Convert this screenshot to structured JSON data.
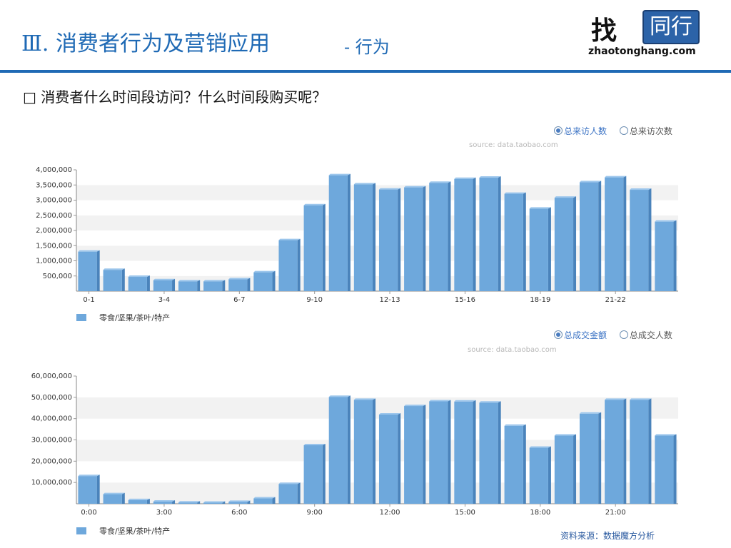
{
  "header": {
    "title": "Ⅲ. 消费者行为及营销应用",
    "subtitle": "- 行为",
    "logo_zh": "找",
    "logo_box": "同行",
    "logo_en": "zhaotonghang.com"
  },
  "question": "□  消费者什么时间段访问？什么时间段购买呢？",
  "footer": "资料来源：数据魔方分析",
  "colors": {
    "bar": "#6ea8dc",
    "bar_side": "#4a83bb",
    "bar_top": "#9cc6ec",
    "accent": "#1f6ab5"
  },
  "chart_data": [
    {
      "type": "bar",
      "source": "source: data.taobao.com",
      "options": [
        {
          "label": "总来访人数",
          "selected": true
        },
        {
          "label": "总来访次数",
          "selected": false
        }
      ],
      "legend": [
        "零食/坚果/茶叶/特产"
      ],
      "ylim": [
        0,
        4000000
      ],
      "yticks": [
        500000,
        1000000,
        1500000,
        2000000,
        2500000,
        3000000,
        3500000,
        4000000
      ],
      "ytick_labels": [
        "500,000",
        "1,000,000",
        "1,500,000",
        "2,000,000",
        "2,500,000",
        "3,000,000",
        "3,500,000",
        "4,000,000"
      ],
      "xtick_labels": [
        {
          "index": 0,
          "label": "0-1"
        },
        {
          "index": 3,
          "label": "3-4"
        },
        {
          "index": 6,
          "label": "6-7"
        },
        {
          "index": 9,
          "label": "9-10"
        },
        {
          "index": 12,
          "label": "12-13"
        },
        {
          "index": 15,
          "label": "15-16"
        },
        {
          "index": 18,
          "label": "18-19"
        },
        {
          "index": 21,
          "label": "21-22"
        }
      ],
      "values": [
        1300000,
        700000,
        470000,
        360000,
        320000,
        320000,
        390000,
        620000,
        1680000,
        2830000,
        3820000,
        3520000,
        3350000,
        3420000,
        3570000,
        3700000,
        3740000,
        3210000,
        2720000,
        3080000,
        3590000,
        3750000,
        3340000,
        2290000
      ]
    },
    {
      "type": "bar",
      "source": "source: data.taobao.com",
      "options": [
        {
          "label": "总成交金额",
          "selected": true
        },
        {
          "label": "总成交人数",
          "selected": false
        }
      ],
      "legend": [
        "零食/坚果/茶叶/特产"
      ],
      "ylim": [
        0,
        60000000
      ],
      "yticks": [
        10000000,
        20000000,
        30000000,
        40000000,
        50000000,
        60000000
      ],
      "ytick_labels": [
        "10,000,000",
        "20,000,000",
        "30,000,000",
        "40,000,000",
        "50,000,000",
        "60,000,000"
      ],
      "xtick_labels": [
        {
          "index": 0,
          "label": "0:00"
        },
        {
          "index": 3,
          "label": "3:00"
        },
        {
          "index": 6,
          "label": "6:00"
        },
        {
          "index": 9,
          "label": "9:00"
        },
        {
          "index": 12,
          "label": "12:00"
        },
        {
          "index": 15,
          "label": "15:00"
        },
        {
          "index": 18,
          "label": "18:00"
        },
        {
          "index": 21,
          "label": "21:00"
        }
      ],
      "values": [
        13000000,
        4500000,
        1700000,
        1000000,
        600000,
        500000,
        900000,
        2500000,
        9300000,
        27500000,
        50200000,
        48800000,
        41900000,
        45900000,
        48100000,
        48000000,
        47500000,
        36600000,
        26300000,
        32000000,
        42300000,
        48800000,
        48800000,
        32000000
      ]
    }
  ]
}
